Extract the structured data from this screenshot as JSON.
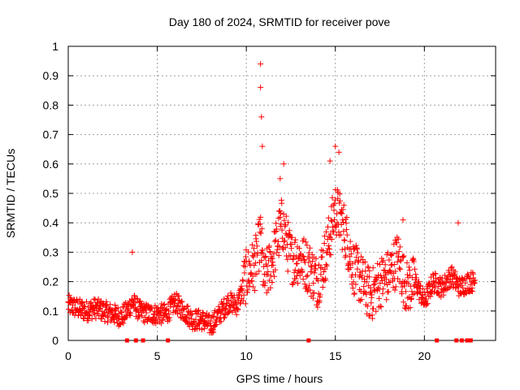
{
  "chart_data": {
    "type": "scatter",
    "title": "Day 180 of 2024, SRMTID for receiver pove",
    "xlabel": "GPS time / hours",
    "ylabel": "SRMTID / TECUs",
    "xlim": [
      0,
      24
    ],
    "ylim": [
      0,
      1
    ],
    "xticks": [
      0,
      5,
      10,
      15,
      20
    ],
    "yticks": [
      0,
      0.1,
      0.2,
      0.3,
      0.4,
      0.5,
      0.6,
      0.7,
      0.8,
      0.9,
      1
    ],
    "grid": true,
    "marker": "plus",
    "color": "#ff0000",
    "series_envelope": [
      {
        "x": 0.0,
        "y": 0.12
      },
      {
        "x": 0.5,
        "y": 0.11
      },
      {
        "x": 1.0,
        "y": 0.1
      },
      {
        "x": 1.5,
        "y": 0.11
      },
      {
        "x": 2.0,
        "y": 0.1
      },
      {
        "x": 2.5,
        "y": 0.09
      },
      {
        "x": 3.0,
        "y": 0.08
      },
      {
        "x": 3.3,
        "y": 0.1
      },
      {
        "x": 3.6,
        "y": 0.13
      },
      {
        "x": 4.0,
        "y": 0.1
      },
      {
        "x": 4.5,
        "y": 0.09
      },
      {
        "x": 5.0,
        "y": 0.09
      },
      {
        "x": 5.5,
        "y": 0.09
      },
      {
        "x": 6.0,
        "y": 0.13
      },
      {
        "x": 6.5,
        "y": 0.1
      },
      {
        "x": 7.0,
        "y": 0.07
      },
      {
        "x": 7.5,
        "y": 0.07
      },
      {
        "x": 8.0,
        "y": 0.05
      },
      {
        "x": 8.5,
        "y": 0.09
      },
      {
        "x": 9.0,
        "y": 0.13
      },
      {
        "x": 9.5,
        "y": 0.12
      },
      {
        "x": 10.0,
        "y": 0.22
      },
      {
        "x": 10.5,
        "y": 0.26
      },
      {
        "x": 10.8,
        "y": 0.35
      },
      {
        "x": 11.0,
        "y": 0.2
      },
      {
        "x": 11.5,
        "y": 0.28
      },
      {
        "x": 12.0,
        "y": 0.4
      },
      {
        "x": 12.5,
        "y": 0.28
      },
      {
        "x": 13.0,
        "y": 0.28
      },
      {
        "x": 13.5,
        "y": 0.25
      },
      {
        "x": 14.0,
        "y": 0.2
      },
      {
        "x": 14.5,
        "y": 0.3
      },
      {
        "x": 15.0,
        "y": 0.45
      },
      {
        "x": 15.5,
        "y": 0.38
      },
      {
        "x": 16.0,
        "y": 0.25
      },
      {
        "x": 16.5,
        "y": 0.2
      },
      {
        "x": 17.0,
        "y": 0.15
      },
      {
        "x": 17.5,
        "y": 0.2
      },
      {
        "x": 18.0,
        "y": 0.22
      },
      {
        "x": 18.5,
        "y": 0.28
      },
      {
        "x": 19.0,
        "y": 0.18
      },
      {
        "x": 19.5,
        "y": 0.2
      },
      {
        "x": 20.0,
        "y": 0.13
      },
      {
        "x": 20.5,
        "y": 0.2
      },
      {
        "x": 21.0,
        "y": 0.18
      },
      {
        "x": 21.5,
        "y": 0.22
      },
      {
        "x": 22.0,
        "y": 0.18
      },
      {
        "x": 22.5,
        "y": 0.2
      },
      {
        "x": 22.8,
        "y": 0.2
      }
    ],
    "spikes": [
      {
        "x": 3.6,
        "y": 0.3
      },
      {
        "x": 10.8,
        "y": 0.94
      },
      {
        "x": 10.8,
        "y": 0.86
      },
      {
        "x": 10.85,
        "y": 0.76
      },
      {
        "x": 10.9,
        "y": 0.66
      },
      {
        "x": 12.1,
        "y": 0.6
      },
      {
        "x": 11.9,
        "y": 0.55
      },
      {
        "x": 14.7,
        "y": 0.61
      },
      {
        "x": 15.0,
        "y": 0.66
      },
      {
        "x": 15.2,
        "y": 0.64
      },
      {
        "x": 21.9,
        "y": 0.4
      },
      {
        "x": 18.8,
        "y": 0.41
      }
    ],
    "zero_markers_x": [
      3.3,
      3.8,
      4.2,
      5.6,
      13.5,
      20.7,
      21.8,
      22.1,
      22.4,
      22.6
    ]
  }
}
